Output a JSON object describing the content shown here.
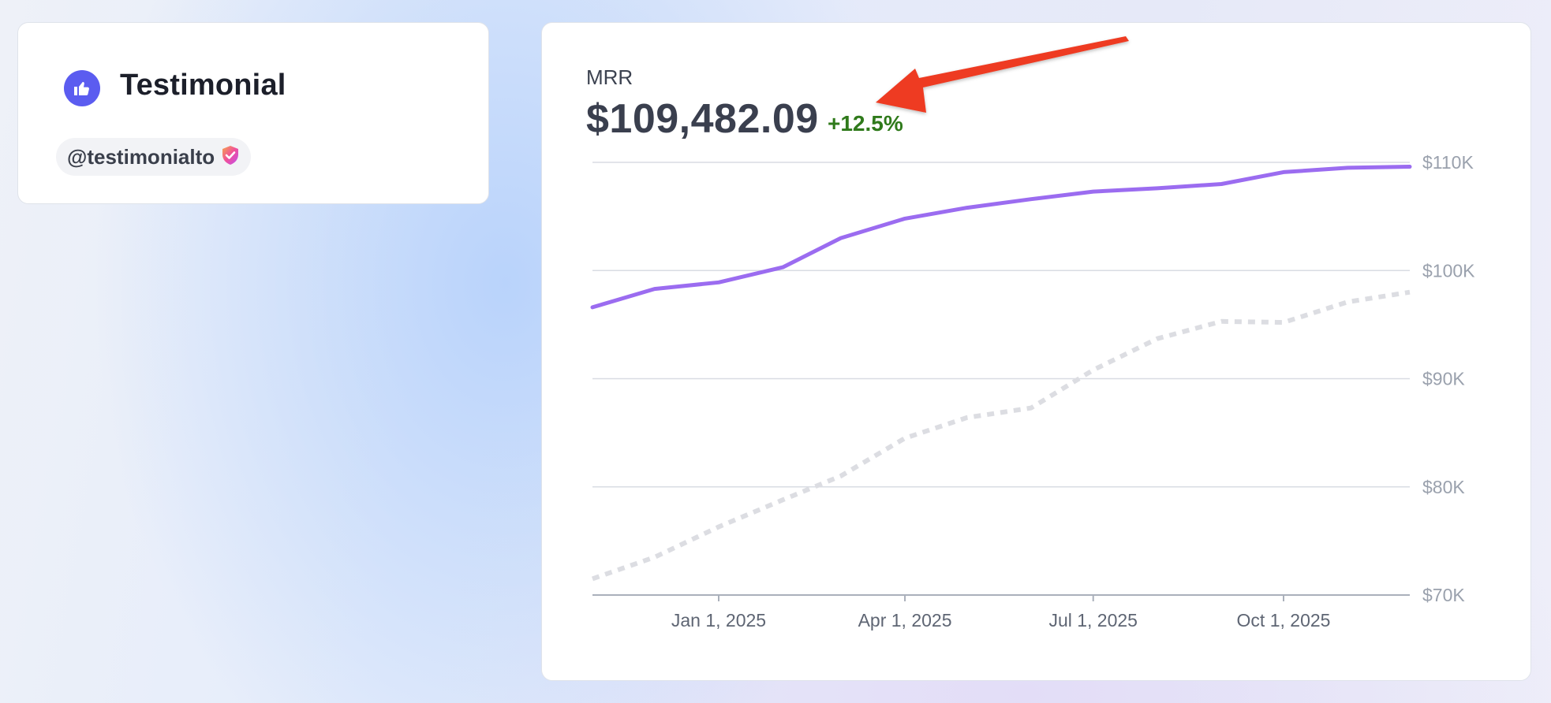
{
  "testimonial": {
    "title": "Testimonial",
    "handle": "@testimonialto",
    "icon": "thumbs-up-icon",
    "verified_icon": "verified-shield-icon",
    "accent": "#5b5cf0"
  },
  "metric": {
    "label": "MRR",
    "value": "$109,482.09",
    "change": "+12.5%",
    "change_color": "#2f7a1b"
  },
  "chart_data": {
    "type": "line",
    "x": [
      "2024-11-01",
      "2024-12-01",
      "2025-01-01",
      "2025-02-01",
      "2025-03-01",
      "2025-04-01",
      "2025-05-01",
      "2025-06-01",
      "2025-07-01",
      "2025-08-01",
      "2025-09-01",
      "2025-10-01",
      "2025-11-01",
      "2025-12-01"
    ],
    "series": [
      {
        "values": [
          96.6,
          98.3,
          98.9,
          100.3,
          103.0,
          104.8,
          105.8,
          106.6,
          107.3,
          107.6,
          108.0,
          109.1,
          109.5,
          109.6
        ],
        "color": "#9b6cf0",
        "style": "solid"
      },
      {
        "values": [
          71.5,
          73.5,
          76.3,
          78.8,
          81.0,
          84.5,
          86.4,
          87.3,
          90.8,
          93.7,
          95.3,
          95.2,
          97.1,
          98.0
        ],
        "color": "#dcdde2",
        "style": "dotted"
      }
    ],
    "ylim": [
      70,
      110
    ],
    "yticks": [
      {
        "value": 110,
        "label": "$110K"
      },
      {
        "value": 100,
        "label": "$100K"
      },
      {
        "value": 90,
        "label": "$90K"
      },
      {
        "value": 80,
        "label": "$80K"
      },
      {
        "value": 70,
        "label": "$70K"
      }
    ],
    "xticks": [
      {
        "date": "2025-01-01",
        "label": "Jan 1, 2025"
      },
      {
        "date": "2025-04-01",
        "label": "Apr 1, 2025"
      },
      {
        "date": "2025-07-01",
        "label": "Jul 1, 2025"
      },
      {
        "date": "2025-10-01",
        "label": "Oct 1, 2025"
      }
    ],
    "grid": true,
    "grid_color": "#d9dce3",
    "axis_position": "right"
  },
  "annotation": {
    "arrow_color": "#ee3b20",
    "points_to": "metric.change"
  }
}
